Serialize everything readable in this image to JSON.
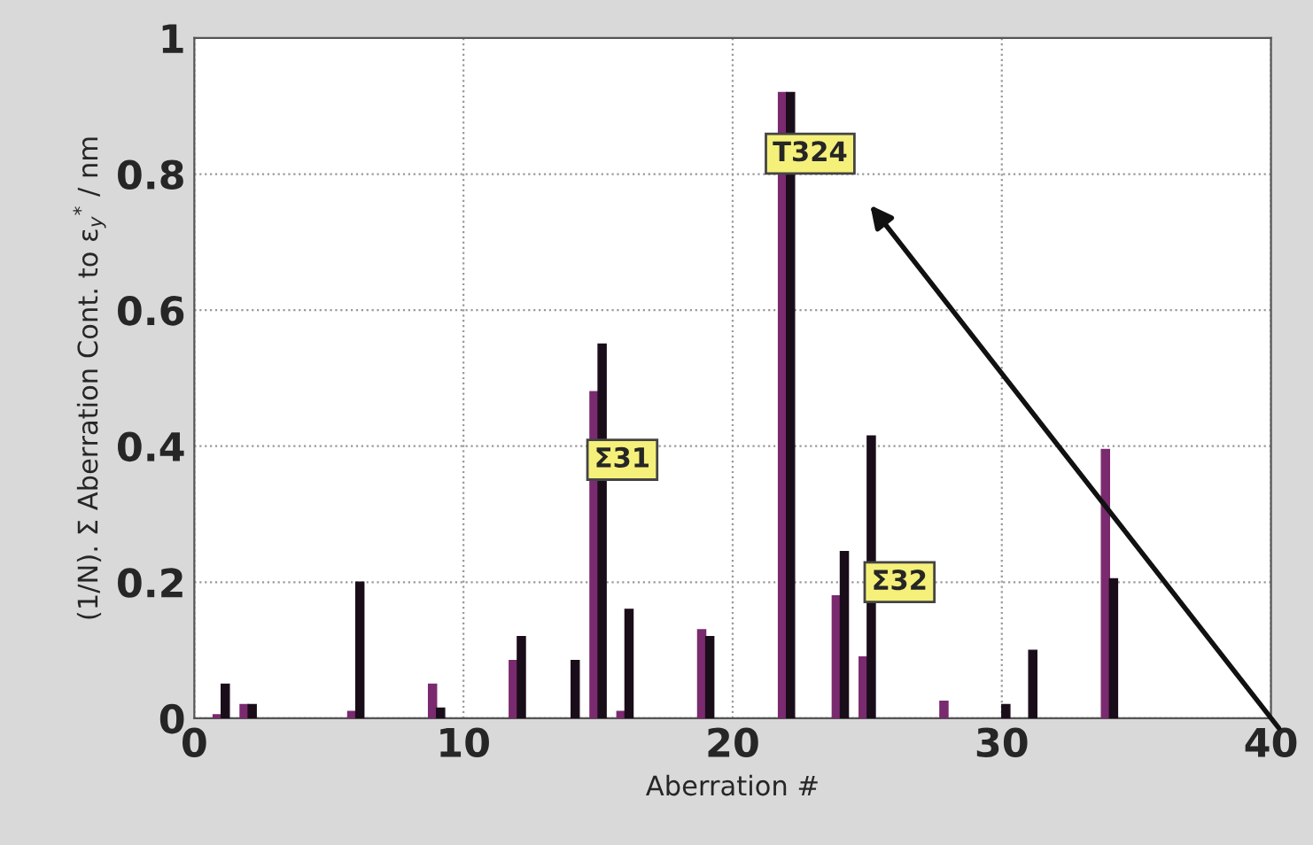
{
  "chart_data": {
    "type": "bar",
    "xlabel": "Aberration #",
    "ylabel": "(1/N). Σ Aberration Cont. to ε$_{y}$$^{*}$ / nm",
    "xlim": [
      0,
      40
    ],
    "xticks": [
      0,
      10,
      20,
      30,
      40
    ],
    "ylim": [
      0,
      1
    ],
    "yticks": [
      0,
      0.2,
      0.4,
      0.6,
      0.8,
      1
    ],
    "grid": true,
    "legend": false,
    "series": [
      {
        "color": "#7a2a6e",
        "x": [
          1,
          2,
          6,
          9,
          12,
          15,
          16,
          19,
          22,
          24,
          25,
          28,
          34
        ],
        "values": [
          0.005,
          0.02,
          0.01,
          0.05,
          0.085,
          0.48,
          0.01,
          0.13,
          0.92,
          0.18,
          0.09,
          0.025,
          0.395
        ]
      },
      {
        "color": "#1a0d1a",
        "x": [
          1,
          2,
          6,
          9,
          12,
          14,
          15,
          16,
          19,
          22,
          24,
          25,
          30,
          31,
          34
        ],
        "values": [
          0.05,
          0.02,
          0.2,
          0.015,
          0.12,
          0.085,
          0.55,
          0.16,
          0.12,
          0.92,
          0.245,
          0.415,
          0.02,
          0.1,
          0.205
        ]
      }
    ],
    "annotations": [
      {
        "text": "Σ31",
        "x": 15.9,
        "y": 0.38
      },
      "T324",
      {
        "text": "Σ32",
        "x": 26.2,
        "y": 0.2
      }
    ]
  }
}
